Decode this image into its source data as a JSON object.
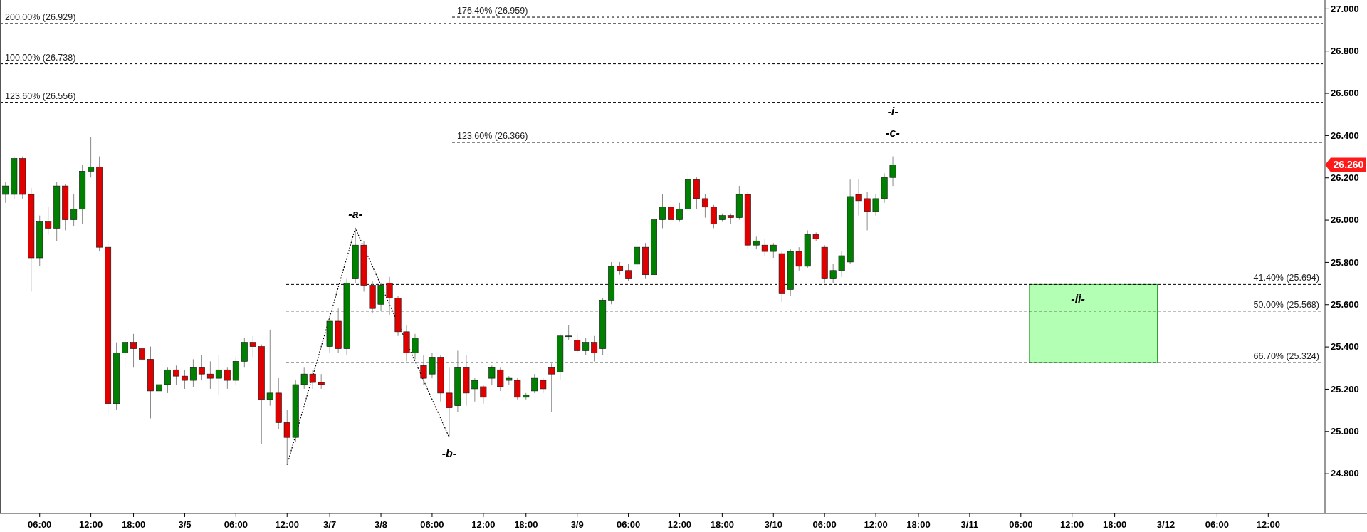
{
  "chart_data": {
    "type": "candlestick",
    "categories": [
      null,
      null,
      null,
      null,
      "06:00",
      null,
      null,
      null,
      null,
      null,
      "12:00",
      null,
      null,
      null,
      null,
      "18:00",
      null,
      null,
      null,
      null,
      null,
      "3/5",
      null,
      null,
      null,
      null,
      null,
      "06:00",
      null,
      null,
      null,
      null,
      null,
      "12:00",
      null,
      null,
      null,
      null,
      "3/7",
      null,
      null,
      null,
      null,
      null,
      "3/8",
      null,
      null,
      null,
      null,
      null,
      "06:00",
      null,
      null,
      null,
      null,
      null,
      "12:00",
      null,
      null,
      null,
      null,
      "18:00",
      null,
      null,
      null,
      null,
      null,
      "3/9",
      null,
      null,
      null,
      null,
      null,
      "06:00",
      null,
      null,
      null,
      null,
      null,
      "12:00",
      null,
      null,
      null,
      null,
      "18:00",
      null,
      null,
      null,
      null,
      null,
      "3/10",
      null,
      null,
      null,
      null,
      null,
      "06:00",
      null,
      null,
      null,
      null,
      null,
      "12:00",
      null,
      null,
      null,
      null,
      "18:00",
      null,
      null,
      null,
      null,
      null,
      "3/11",
      null,
      null,
      null,
      null,
      null,
      "06:00",
      null,
      null,
      null,
      null,
      null,
      "12:00",
      null,
      null,
      null,
      null,
      "18:00",
      null,
      null,
      null,
      null,
      null,
      "3/12",
      null,
      null,
      null,
      null,
      null,
      "06:00",
      null,
      null,
      null,
      null,
      null,
      "12:00",
      null,
      null,
      null,
      null,
      null,
      null
    ],
    "ohlc": [
      [
        26.12,
        26.18,
        26.08,
        26.16
      ],
      [
        26.12,
        26.3,
        26.1,
        26.29
      ],
      [
        26.29,
        26.3,
        26.1,
        26.12
      ],
      [
        26.12,
        26.15,
        25.66,
        25.82
      ],
      [
        25.82,
        26.02,
        25.78,
        25.99
      ],
      [
        25.99,
        26.06,
        25.93,
        25.96
      ],
      [
        25.96,
        26.18,
        25.9,
        26.16
      ],
      [
        26.16,
        26.17,
        25.95,
        26.0
      ],
      [
        26.0,
        26.12,
        25.97,
        26.05
      ],
      [
        26.05,
        26.26,
        25.98,
        26.23
      ],
      [
        26.23,
        26.39,
        26.2,
        26.25
      ],
      [
        26.25,
        26.3,
        25.85,
        25.87
      ],
      [
        25.87,
        25.9,
        25.08,
        25.13
      ],
      [
        25.13,
        25.42,
        25.1,
        25.37
      ],
      [
        25.37,
        25.45,
        25.3,
        25.42
      ],
      [
        25.42,
        25.46,
        25.3,
        25.39
      ],
      [
        25.39,
        25.45,
        25.3,
        25.34
      ],
      [
        25.34,
        25.4,
        25.06,
        25.19
      ],
      [
        25.19,
        25.26,
        25.14,
        25.22
      ],
      [
        25.22,
        25.3,
        25.18,
        25.29
      ],
      [
        25.29,
        25.31,
        25.22,
        25.26
      ],
      [
        25.26,
        25.29,
        25.2,
        25.24
      ],
      [
        25.24,
        25.34,
        25.21,
        25.3
      ],
      [
        25.3,
        25.36,
        25.24,
        25.27
      ],
      [
        25.27,
        25.33,
        25.2,
        25.25
      ],
      [
        25.25,
        25.36,
        25.17,
        25.29
      ],
      [
        25.29,
        25.3,
        25.2,
        25.24
      ],
      [
        25.24,
        25.35,
        25.22,
        25.33
      ],
      [
        25.33,
        25.44,
        25.3,
        25.42
      ],
      [
        25.42,
        25.45,
        25.35,
        25.4
      ],
      [
        25.4,
        25.41,
        24.94,
        25.15
      ],
      [
        25.15,
        25.48,
        25.12,
        25.18
      ],
      [
        25.18,
        25.25,
        25.01,
        25.04
      ],
      [
        25.04,
        25.1,
        24.84,
        24.97
      ],
      [
        24.97,
        25.24,
        24.95,
        25.22
      ],
      [
        25.22,
        25.3,
        25.2,
        25.27
      ],
      [
        25.27,
        25.29,
        25.2,
        25.23
      ],
      [
        25.23,
        25.27,
        25.2,
        25.22
      ],
      [
        25.4,
        25.54,
        25.37,
        25.52
      ],
      [
        25.52,
        25.58,
        25.37,
        25.39
      ],
      [
        25.39,
        25.72,
        25.36,
        25.7
      ],
      [
        25.72,
        25.96,
        25.7,
        25.88
      ],
      [
        25.88,
        25.9,
        25.66,
        25.69
      ],
      [
        25.69,
        25.71,
        25.56,
        25.58
      ],
      [
        25.6,
        25.7,
        25.57,
        25.69
      ],
      [
        25.7,
        25.73,
        25.55,
        25.63
      ],
      [
        25.63,
        25.64,
        25.45,
        25.47
      ],
      [
        25.47,
        25.5,
        25.33,
        25.37
      ],
      [
        25.37,
        25.46,
        25.34,
        25.44
      ],
      [
        25.31,
        25.36,
        25.22,
        25.25
      ],
      [
        25.27,
        25.37,
        25.25,
        25.35
      ],
      [
        25.35,
        25.36,
        25.14,
        25.18
      ],
      [
        25.18,
        25.3,
        24.97,
        25.11
      ],
      [
        25.12,
        25.38,
        25.09,
        25.3
      ],
      [
        25.3,
        25.36,
        25.12,
        25.18
      ],
      [
        25.2,
        25.25,
        25.14,
        25.24
      ],
      [
        25.21,
        25.22,
        25.13,
        25.16
      ],
      [
        25.25,
        25.31,
        25.22,
        25.3
      ],
      [
        25.29,
        25.3,
        25.19,
        25.21
      ],
      [
        25.24,
        25.26,
        25.22,
        25.25
      ],
      [
        25.24,
        25.25,
        25.15,
        25.16
      ],
      [
        25.16,
        25.18,
        25.15,
        25.17
      ],
      [
        25.19,
        25.27,
        25.18,
        25.25
      ],
      [
        25.24,
        25.25,
        25.18,
        25.2
      ],
      [
        25.3,
        25.32,
        25.09,
        25.27
      ],
      [
        25.28,
        25.46,
        25.24,
        25.45
      ],
      [
        25.45,
        25.5,
        25.43,
        25.45
      ],
      [
        25.43,
        25.46,
        25.37,
        25.38
      ],
      [
        25.38,
        25.44,
        25.36,
        25.42
      ],
      [
        25.42,
        25.45,
        25.33,
        25.37
      ],
      [
        25.39,
        25.63,
        25.36,
        25.62
      ],
      [
        25.62,
        25.8,
        25.6,
        25.78
      ],
      [
        25.78,
        25.8,
        25.74,
        25.76
      ],
      [
        25.76,
        25.79,
        25.71,
        25.72
      ],
      [
        25.79,
        25.91,
        25.76,
        25.87
      ],
      [
        25.87,
        25.89,
        25.72,
        25.74
      ],
      [
        25.74,
        26.01,
        25.72,
        26.0
      ],
      [
        26.0,
        26.12,
        25.96,
        26.06
      ],
      [
        26.06,
        26.12,
        25.97,
        26.0
      ],
      [
        26.0,
        26.08,
        25.99,
        26.05
      ],
      [
        26.05,
        26.22,
        26.04,
        26.19
      ],
      [
        26.19,
        26.2,
        26.05,
        26.1
      ],
      [
        26.1,
        26.12,
        26.01,
        26.06
      ],
      [
        26.06,
        26.07,
        25.96,
        25.98
      ],
      [
        26.0,
        26.03,
        25.99,
        26.02
      ],
      [
        26.02,
        26.03,
        25.98,
        26.01
      ],
      [
        26.01,
        26.16,
        26.0,
        26.12
      ],
      [
        26.12,
        26.13,
        25.86,
        25.88
      ],
      [
        25.88,
        25.92,
        25.86,
        25.9
      ],
      [
        25.88,
        25.91,
        25.83,
        25.85
      ],
      [
        25.85,
        25.89,
        25.82,
        25.88
      ],
      [
        25.84,
        25.85,
        25.61,
        25.65
      ],
      [
        25.67,
        25.86,
        25.64,
        25.85
      ],
      [
        25.85,
        25.87,
        25.76,
        25.78
      ],
      [
        25.78,
        25.95,
        25.77,
        25.93
      ],
      [
        25.93,
        25.94,
        25.9,
        25.91
      ],
      [
        25.87,
        25.88,
        25.7,
        25.72
      ],
      [
        25.72,
        25.79,
        25.7,
        25.76
      ],
      [
        25.76,
        25.85,
        25.73,
        25.83
      ],
      [
        25.8,
        26.19,
        25.79,
        26.11
      ],
      [
        26.12,
        26.19,
        26.02,
        26.09
      ],
      [
        26.1,
        26.13,
        25.95,
        26.04
      ],
      [
        26.04,
        26.12,
        26.02,
        26.1
      ],
      [
        26.1,
        26.22,
        26.08,
        26.2
      ],
      [
        26.2,
        26.3,
        26.16,
        26.26
      ],
      null,
      null,
      null,
      null,
      null,
      null,
      null,
      null,
      null,
      null,
      null,
      null,
      null,
      null,
      null,
      null,
      null,
      null,
      null,
      null,
      null,
      null,
      null,
      null,
      null,
      null,
      null,
      null,
      null,
      null,
      null,
      null,
      null,
      null,
      null,
      null,
      null,
      null,
      null,
      null,
      null,
      null,
      null,
      null,
      null,
      null,
      null,
      null,
      null,
      null
    ],
    "series": [
      {
        "type": "line",
        "color": "#000000",
        "values": [
          null,
          null,
          null,
          null,
          null,
          null,
          null,
          null,
          null,
          null,
          null,
          null,
          null,
          null,
          null,
          null,
          null,
          null,
          null,
          null,
          null,
          null,
          null,
          null,
          null,
          null,
          null,
          null,
          null,
          null,
          null,
          null,
          null,
          24.84,
          null,
          null,
          null,
          null,
          null,
          null,
          null,
          25.96,
          null,
          null,
          null,
          null,
          null,
          null,
          null,
          null,
          null,
          null,
          24.97,
          null,
          null,
          null,
          null,
          null,
          null,
          null,
          null,
          null,
          null,
          null,
          null,
          null,
          null,
          null,
          null,
          null,
          null,
          null,
          null,
          null,
          null,
          null,
          null,
          null,
          null,
          null,
          null,
          null,
          null,
          null,
          null,
          null,
          null,
          null,
          null,
          null,
          null,
          null,
          null,
          null,
          null,
          null,
          null,
          null,
          null,
          null,
          null,
          null,
          null,
          null,
          null,
          null,
          null,
          null,
          null,
          null,
          null,
          null,
          null,
          null,
          null,
          null,
          null,
          null,
          null,
          null,
          null,
          null,
          null,
          null,
          null,
          null,
          null,
          null,
          null,
          null,
          null,
          null,
          null,
          null,
          null,
          null,
          null,
          null,
          null,
          null,
          null,
          null,
          null,
          null,
          null,
          null,
          null,
          null,
          null,
          null,
          null,
          null,
          null,
          null,
          null
        ]
      }
    ],
    "line_style": "dotted",
    "ylim": [
      24.61,
      27.04
    ],
    "yticks": [
      {
        "value": 24.8,
        "label": "24.800"
      },
      {
        "value": 25.0,
        "label": "25.000"
      },
      {
        "value": 25.2,
        "label": "25.200"
      },
      {
        "value": 25.4,
        "label": "25.400"
      },
      {
        "value": 25.6,
        "label": "25.600"
      },
      {
        "value": 25.8,
        "label": "25.800"
      },
      {
        "value": 26.0,
        "label": "26.000"
      },
      {
        "value": 26.2,
        "label": "26.200"
      },
      {
        "value": 26.4,
        "label": "26.400"
      },
      {
        "value": 26.6,
        "label": "26.600"
      },
      {
        "value": 26.8,
        "label": "26.800"
      },
      {
        "value": 27.0,
        "label": "27.000"
      }
    ],
    "ref_lines": [
      {
        "axis": "y",
        "value": 26.929,
        "label": "200.00% (26.929)",
        "line_style": "dashed"
      },
      {
        "axis": "y",
        "value": 26.959,
        "label": "176.40% (26.959)",
        "line_style": "dashed"
      },
      {
        "axis": "y",
        "value": 26.738,
        "label": "100.00% (26.738)",
        "line_style": "dashed"
      },
      {
        "axis": "y",
        "value": 26.556,
        "label": "123.60% (26.556)",
        "line_style": "dashed"
      },
      {
        "axis": "y",
        "value": 26.366,
        "label": "123.60% (26.366)",
        "line_style": "dashed"
      },
      {
        "axis": "y",
        "value": 25.694,
        "label": "41.40% (25.694)",
        "line_style": "dashed"
      },
      {
        "axis": "y",
        "value": 25.568,
        "label": "50.00% (25.568)",
        "line_style": "dashed"
      },
      {
        "axis": "y",
        "value": 25.324,
        "label": "66.70% (25.324)",
        "line_style": "dashed"
      }
    ],
    "bands": [
      {
        "axis": "y",
        "from": 25.324,
        "to": 25.694,
        "label": "-ii-",
        "color": "#b3ffb3"
      }
    ],
    "annotations": [
      "-a-",
      "-b-",
      "-i-",
      "-c-",
      "26.260"
    ]
  }
}
